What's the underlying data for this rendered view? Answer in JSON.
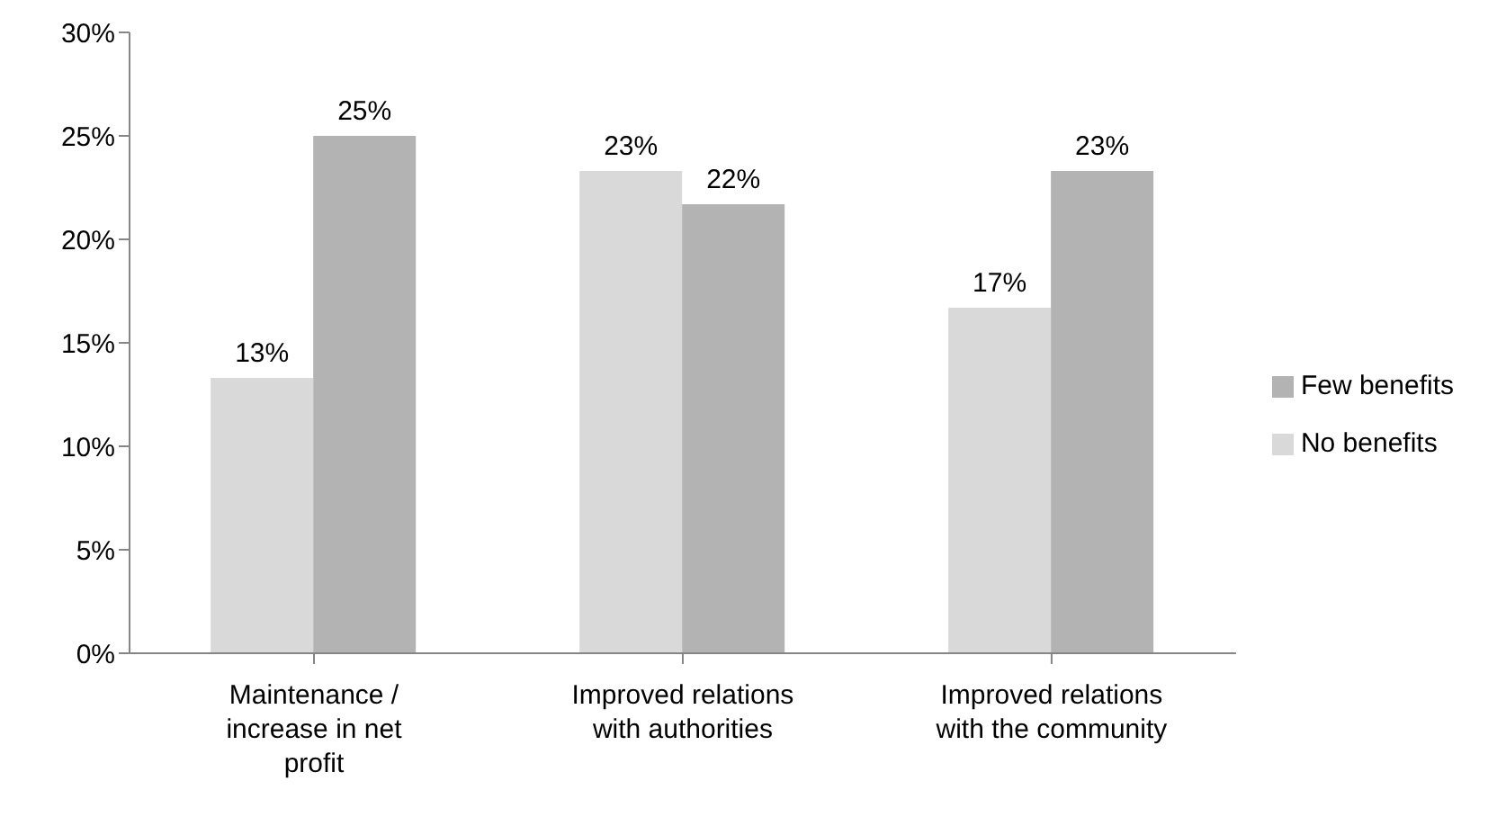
{
  "chart_data": {
    "type": "bar",
    "categories": [
      "Maintenance / increase in net profit",
      "Improved relations with authorities",
      "Improved relations with the community"
    ],
    "series": [
      {
        "name": "No benefits",
        "color": "#d9d9d9",
        "values": [
          13.3,
          23.3,
          16.7
        ],
        "value_labels": [
          "13%",
          "23%",
          "17%"
        ]
      },
      {
        "name": "Few benefits",
        "color": "#b3b3b3",
        "values": [
          25,
          21.7,
          23.3
        ],
        "value_labels": [
          "25%",
          "22%",
          "23%"
        ]
      }
    ],
    "ylim": [
      0,
      30
    ],
    "yticks": [
      {
        "value": 0,
        "label": "0%"
      },
      {
        "value": 5,
        "label": "5%"
      },
      {
        "value": 10,
        "label": "10%"
      },
      {
        "value": 15,
        "label": "15%"
      },
      {
        "value": 20,
        "label": "20%"
      },
      {
        "value": 25,
        "label": "25%"
      },
      {
        "value": 30,
        "label": "30%"
      }
    ],
    "grid": false,
    "legend": "right"
  }
}
